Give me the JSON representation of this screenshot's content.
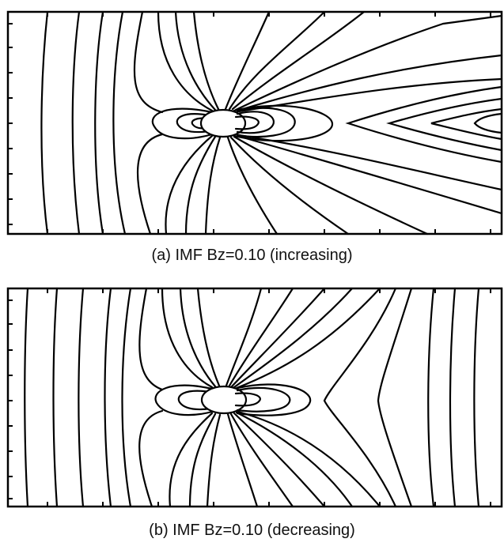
{
  "panels": [
    {
      "caption": "(a) IMF Bz=0.10 (increasing)"
    },
    {
      "caption": "(b) IMF Bz=0.10 (decreasing)"
    }
  ],
  "colors": {
    "line": "#000000",
    "background": "#ffffff"
  }
}
